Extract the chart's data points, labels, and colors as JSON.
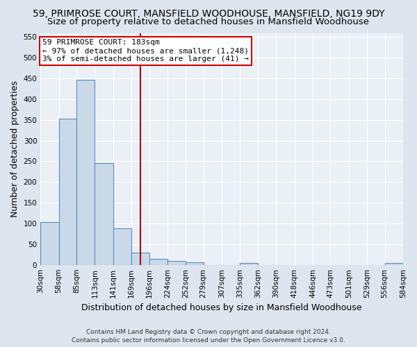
{
  "title": "59, PRIMROSE COURT, MANSFIELD WOODHOUSE, MANSFIELD, NG19 9DY",
  "subtitle": "Size of property relative to detached houses in Mansfield Woodhouse",
  "xlabel": "Distribution of detached houses by size in Mansfield Woodhouse",
  "ylabel": "Number of detached properties",
  "footer_line1": "Contains HM Land Registry data © Crown copyright and database right 2024.",
  "footer_line2": "Contains public sector information licensed under the Open Government Licence v3.0.",
  "bar_edges": [
    30,
    58,
    85,
    113,
    141,
    169,
    196,
    224,
    252,
    279,
    307,
    335,
    362,
    390,
    418,
    446,
    473,
    501,
    529,
    556,
    584
  ],
  "bar_heights": [
    103,
    353,
    447,
    246,
    88,
    30,
    14,
    10,
    6,
    0,
    0,
    5,
    0,
    0,
    0,
    0,
    0,
    0,
    0,
    5
  ],
  "bar_color": "#c9d9e8",
  "bar_edge_color": "#5b8db8",
  "property_size": 183,
  "annotation_line1": "59 PRIMROSE COURT: 183sqm",
  "annotation_line2": "← 97% of detached houses are smaller (1,248)",
  "annotation_line3": "3% of semi-detached houses are larger (41) →",
  "vline_color": "#aa0000",
  "annotation_box_edgecolor": "#cc0000",
  "ylim": [
    0,
    560
  ],
  "yticks": [
    0,
    50,
    100,
    150,
    200,
    250,
    300,
    350,
    400,
    450,
    500,
    550
  ],
  "bg_color": "#dde6ef",
  "plot_bg_color": "#eaf0f6",
  "grid_color": "#ffffff",
  "title_fontsize": 10,
  "subtitle_fontsize": 9.5,
  "ylabel_fontsize": 9,
  "xlabel_fontsize": 9,
  "tick_fontsize": 7.5,
  "footer_fontsize": 6.5,
  "annot_fontsize": 8.0
}
